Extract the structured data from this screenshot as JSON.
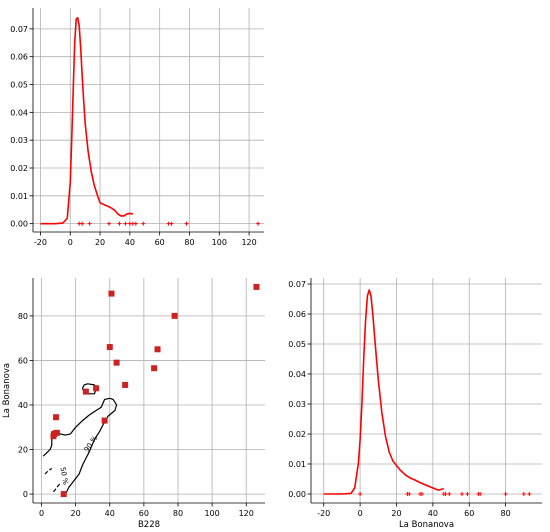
{
  "chart_data": [
    {
      "type": "line",
      "title": "",
      "xlabel": "",
      "ylabel": "",
      "xlim": [
        -25,
        130
      ],
      "ylim": [
        -0.003,
        0.0775
      ],
      "xticks": [
        -20,
        0,
        20,
        40,
        60,
        80,
        100,
        120
      ],
      "yticks": [
        0.0,
        0.01,
        0.02,
        0.03,
        0.04,
        0.05,
        0.06,
        0.07
      ],
      "ytick_labels": [
        "0.00",
        "0.01",
        "0.02",
        "0.03",
        "0.04",
        "0.05",
        "0.06",
        "0.07"
      ],
      "grid": true,
      "color": "#ff0000",
      "density_curve": {
        "x": [
          -20,
          -10,
          -5,
          -2,
          0,
          1,
          2,
          3,
          4,
          5,
          6,
          7,
          8,
          9,
          10,
          12,
          14,
          16,
          18,
          20,
          22,
          25,
          28,
          30,
          32,
          34,
          36,
          38,
          40,
          42
        ],
        "y": [
          0,
          0,
          0.0002,
          0.002,
          0.015,
          0.03,
          0.048,
          0.065,
          0.0735,
          0.074,
          0.071,
          0.063,
          0.053,
          0.044,
          0.036,
          0.026,
          0.019,
          0.014,
          0.0105,
          0.0075,
          0.007,
          0.0063,
          0.0055,
          0.0047,
          0.0035,
          0.0028,
          0.0028,
          0.0035,
          0.0037,
          0.0035
        ]
      },
      "rug_x": [
        6,
        8,
        13,
        26,
        33,
        37,
        40,
        42,
        44,
        49,
        66,
        68,
        78,
        126
      ]
    },
    {
      "type": "scatter",
      "title": "",
      "xlabel": "B228",
      "ylabel": "La Bonanova",
      "xlim": [
        -5,
        131
      ],
      "ylim": [
        -4,
        97
      ],
      "xticks": [
        0,
        20,
        40,
        60,
        80,
        100,
        120
      ],
      "yticks": [
        0,
        20,
        40,
        60,
        80
      ],
      "grid": true,
      "marker_color": "#cc2222",
      "points": [
        {
          "x": 7,
          "y": 26
        },
        {
          "x": 7.5,
          "y": 27
        },
        {
          "x": 8.5,
          "y": 34.5
        },
        {
          "x": 9,
          "y": 27.5
        },
        {
          "x": 13,
          "y": 0
        },
        {
          "x": 26,
          "y": 46
        },
        {
          "x": 32,
          "y": 47.5
        },
        {
          "x": 37,
          "y": 33
        },
        {
          "x": 40,
          "y": 66
        },
        {
          "x": 41,
          "y": 90
        },
        {
          "x": 44,
          "y": 59
        },
        {
          "x": 49,
          "y": 49
        },
        {
          "x": 66,
          "y": 56.5
        },
        {
          "x": 68,
          "y": 65
        },
        {
          "x": 78,
          "y": 80
        },
        {
          "x": 126,
          "y": 93
        }
      ],
      "contour_labels": [
        "50 %",
        "90 %"
      ],
      "contours": [
        {
          "dash": false,
          "pts": [
            [
              6,
              26
            ],
            [
              6,
              28
            ],
            [
              8,
              28.5
            ],
            [
              11,
              27
            ],
            [
              14,
              26.5
            ],
            [
              17,
              27
            ],
            [
              20,
              30
            ],
            [
              24,
              33
            ],
            [
              28,
              35.5
            ],
            [
              32,
              37.5
            ],
            [
              35,
              39
            ],
            [
              37,
              42.5
            ],
            [
              40,
              43
            ],
            [
              42,
              42.5
            ],
            [
              44,
              40
            ],
            [
              43,
              37.5
            ],
            [
              39,
              35
            ],
            [
              36,
              31
            ],
            [
              34,
              28
            ],
            [
              31,
              24.5
            ],
            [
              28,
              19
            ],
            [
              26,
              16
            ],
            [
              24,
              13
            ],
            [
              22,
              9
            ],
            [
              20,
              7
            ],
            [
              18,
              5
            ],
            [
              16,
              3
            ],
            [
              14,
              0
            ]
          ]
        },
        {
          "dash": false,
          "pts": [
            [
              24,
              47.5
            ],
            [
              25,
              49
            ],
            [
              27,
              49.5
            ],
            [
              31,
              49
            ],
            [
              32,
              47
            ],
            [
              31,
              45
            ],
            [
              28,
              45
            ],
            [
              25,
              45.5
            ],
            [
              24,
              47.5
            ]
          ]
        },
        {
          "dash": false,
          "pts": [
            [
              1,
              17
            ],
            [
              3,
              18.5
            ],
            [
              5,
              20
            ],
            [
              6,
              22
            ],
            [
              6,
              25
            ]
          ]
        },
        {
          "dash": true,
          "pts": [
            [
              2,
              9
            ],
            [
              4,
              10.5
            ],
            [
              6,
              11.5
            ]
          ]
        },
        {
          "dash": true,
          "pts": [
            [
              7,
              1
            ],
            [
              9,
              3
            ],
            [
              11,
              5
            ]
          ]
        }
      ]
    },
    {
      "type": "line",
      "title": "",
      "xlabel": "La Bonanova",
      "ylabel": "",
      "xlim": [
        -27,
        100
      ],
      "ylim": [
        -0.003,
        0.072
      ],
      "xticks": [
        -20,
        0,
        20,
        40,
        60,
        80
      ],
      "yticks": [
        0.0,
        0.01,
        0.02,
        0.03,
        0.04,
        0.05,
        0.06,
        0.07
      ],
      "ytick_labels": [
        "0.00",
        "0.01",
        "0.02",
        "0.03",
        "0.04",
        "0.05",
        "0.06",
        "0.07"
      ],
      "grid": true,
      "color": "#ff0000",
      "density_curve": {
        "x": [
          -20,
          -10,
          -5,
          -3,
          -1,
          0,
          1,
          2,
          3,
          4,
          5,
          6,
          7,
          8,
          9,
          10,
          12,
          14,
          16,
          18,
          20,
          22,
          25,
          28,
          30,
          33,
          36,
          40,
          43,
          46
        ],
        "y": [
          0,
          0,
          0.0002,
          0.002,
          0.01,
          0.018,
          0.03,
          0.045,
          0.058,
          0.066,
          0.068,
          0.066,
          0.06,
          0.052,
          0.045,
          0.038,
          0.027,
          0.019,
          0.014,
          0.011,
          0.0095,
          0.008,
          0.0063,
          0.0052,
          0.0047,
          0.0038,
          0.003,
          0.002,
          0.0013,
          0.0018
        ]
      },
      "rug_x": [
        0,
        26,
        27,
        33,
        34,
        46,
        47,
        49,
        56,
        59,
        65,
        66,
        80,
        90,
        93
      ]
    }
  ]
}
